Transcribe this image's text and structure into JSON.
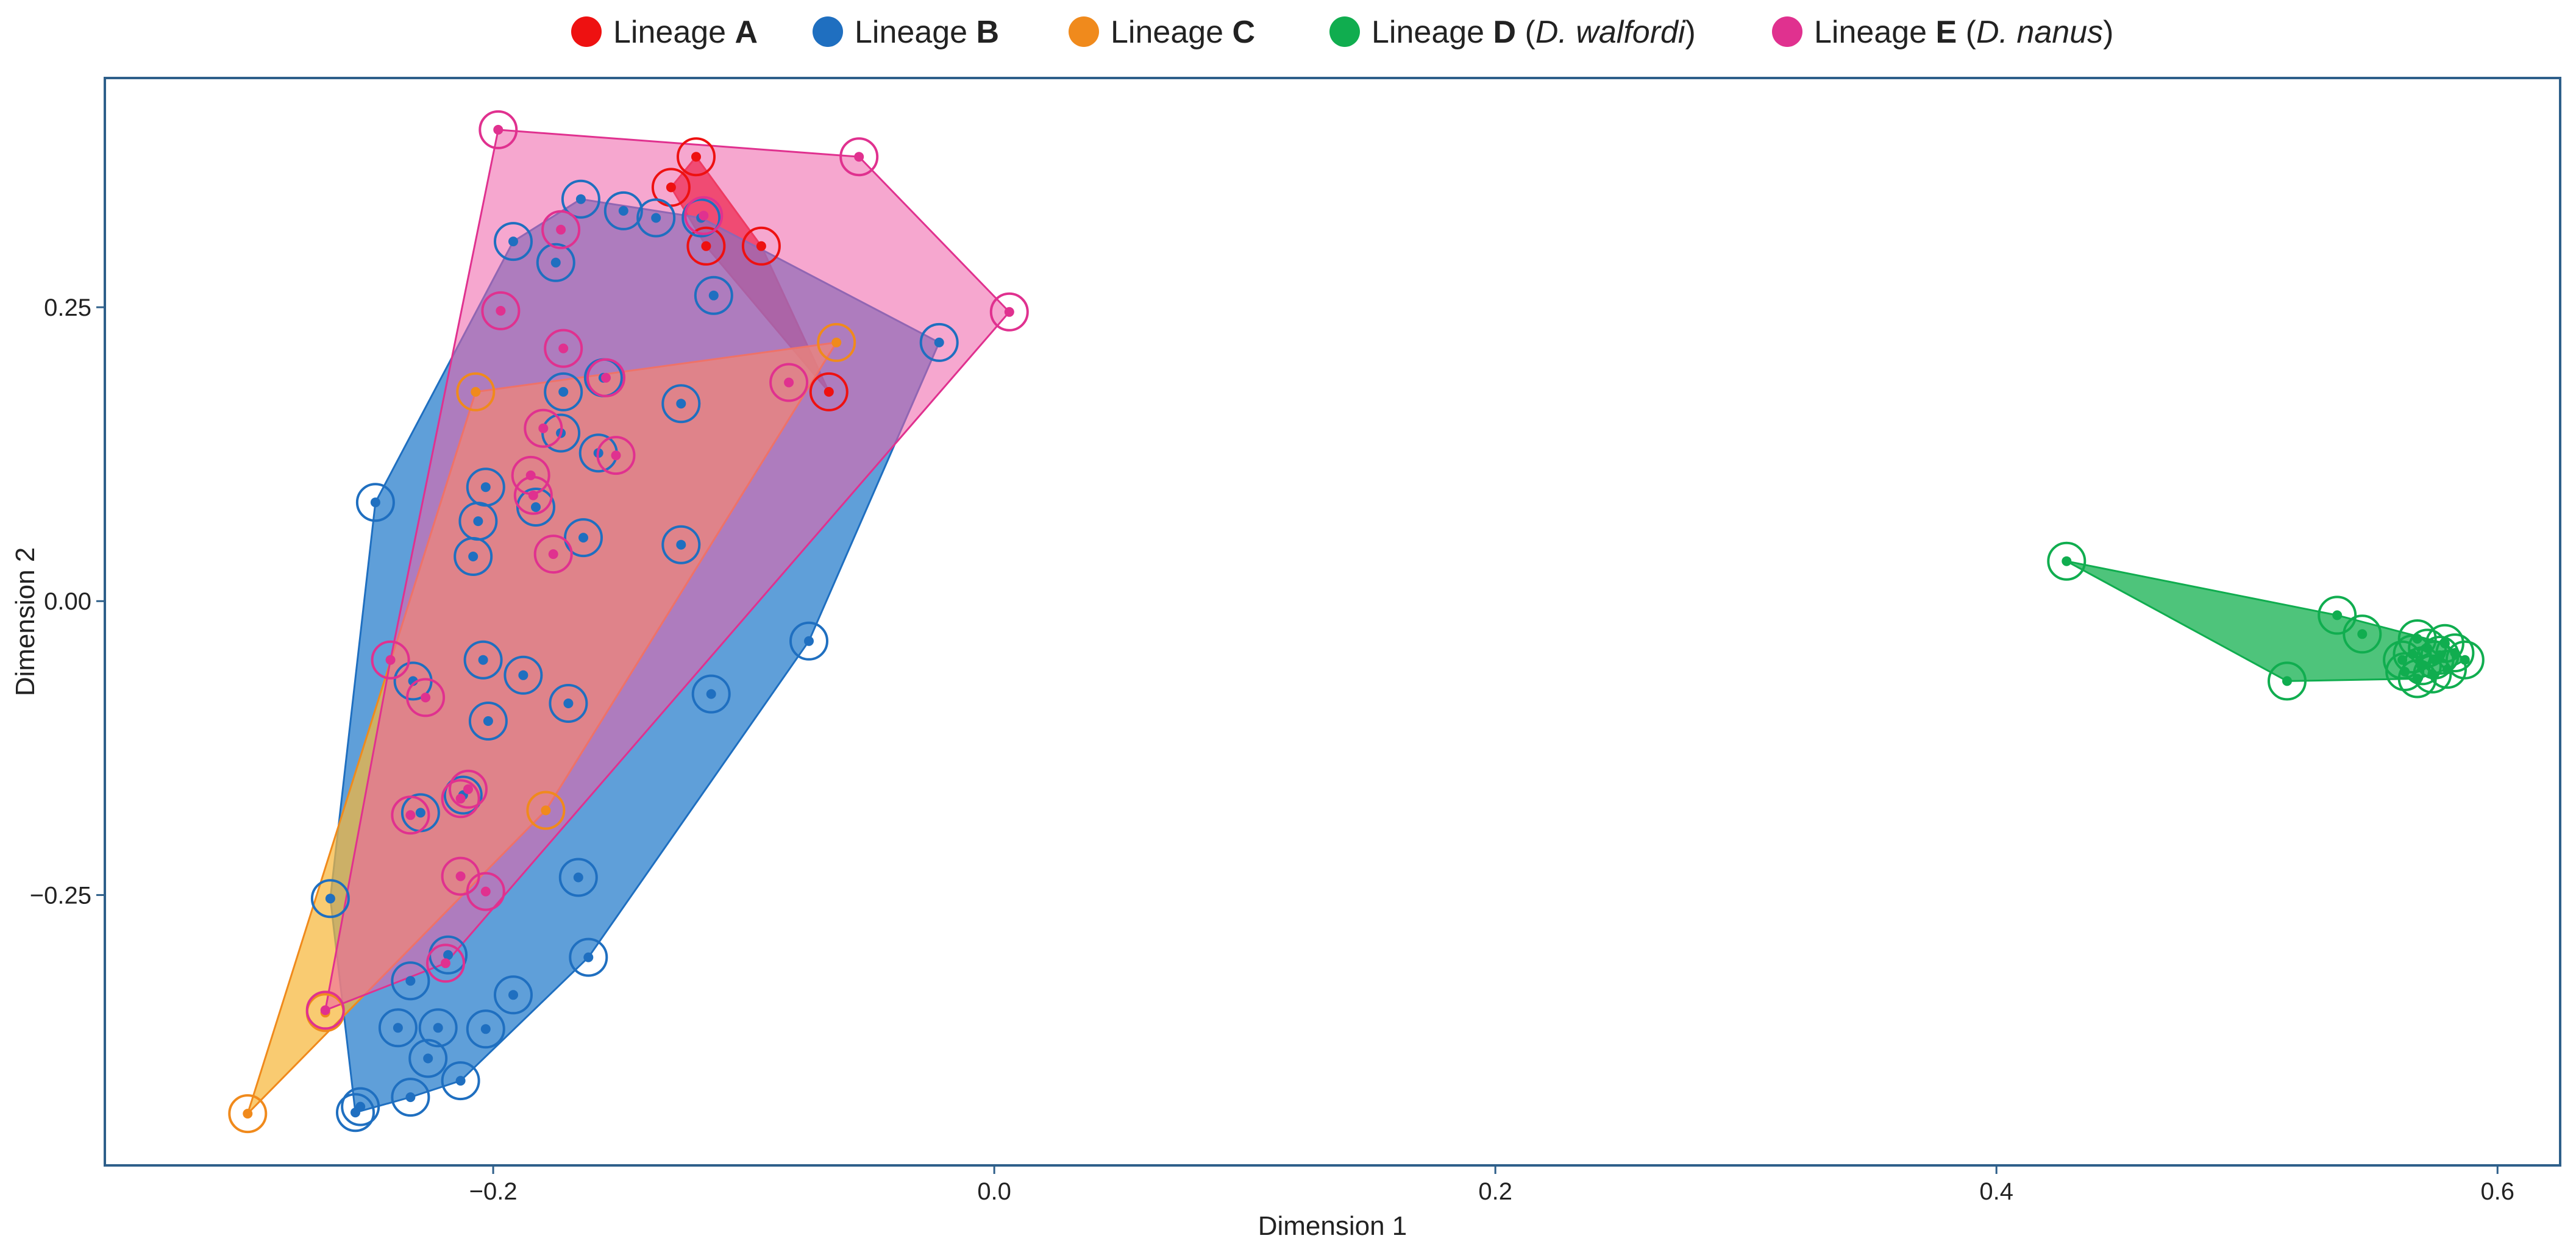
{
  "chart_data": {
    "type": "scatter",
    "title": "",
    "xlabel": "Dimension 1",
    "ylabel": "Dimension 2",
    "xlim": [
      -0.355,
      0.625
    ],
    "ylim": [
      -0.48,
      0.445
    ],
    "xticks": [
      -0.2,
      0.0,
      0.2,
      0.4,
      0.6
    ],
    "xtick_labels": [
      "−0.2",
      "0.0",
      "0.2",
      "0.4",
      "0.6"
    ],
    "yticks": [
      0.25,
      0.0,
      -0.25
    ],
    "ytick_labels": [
      "0.25",
      "0.00",
      "−0.25"
    ],
    "grid": false,
    "legend_position": "top-center",
    "series": [
      {
        "name": "Lineage A",
        "legend_prefix": "Lineage ",
        "legend_bold": "A",
        "legend_italic": "",
        "color": "#ee1111",
        "fill": "#ee1111",
        "hull_opacity": 0.85,
        "points": [
          [
            -0.119,
            0.378
          ],
          [
            -0.129,
            0.352
          ],
          [
            -0.115,
            0.302
          ],
          [
            -0.093,
            0.302
          ],
          [
            -0.066,
            0.178
          ]
        ]
      },
      {
        "name": "Lineage B",
        "legend_prefix": "Lineage ",
        "legend_bold": "B",
        "legend_italic": "",
        "color": "#1f6fc0",
        "fill": "#2a7fcc",
        "hull_opacity": 0.75,
        "points": [
          [
            -0.165,
            0.342
          ],
          [
            -0.148,
            0.332
          ],
          [
            -0.135,
            0.326
          ],
          [
            -0.117,
            0.326
          ],
          [
            -0.192,
            0.306
          ],
          [
            -0.175,
            0.288
          ],
          [
            -0.112,
            0.26
          ],
          [
            -0.022,
            0.22
          ],
          [
            -0.172,
            0.178
          ],
          [
            -0.156,
            0.19
          ],
          [
            -0.125,
            0.168
          ],
          [
            -0.173,
            0.143
          ],
          [
            -0.158,
            0.126
          ],
          [
            -0.247,
            0.084
          ],
          [
            -0.203,
            0.097
          ],
          [
            -0.206,
            0.068
          ],
          [
            -0.183,
            0.08
          ],
          [
            -0.164,
            0.054
          ],
          [
            -0.125,
            0.048
          ],
          [
            -0.208,
            0.038
          ],
          [
            -0.074,
            -0.034
          ],
          [
            -0.232,
            -0.068
          ],
          [
            -0.204,
            -0.05
          ],
          [
            -0.188,
            -0.063
          ],
          [
            -0.17,
            -0.087
          ],
          [
            -0.113,
            -0.079
          ],
          [
            -0.202,
            -0.102
          ],
          [
            -0.229,
            -0.18
          ],
          [
            -0.212,
            -0.165
          ],
          [
            -0.265,
            -0.253
          ],
          [
            -0.166,
            -0.235
          ],
          [
            -0.162,
            -0.303
          ],
          [
            -0.218,
            -0.301
          ],
          [
            -0.192,
            -0.335
          ],
          [
            -0.233,
            -0.323
          ],
          [
            -0.238,
            -0.363
          ],
          [
            -0.222,
            -0.363
          ],
          [
            -0.203,
            -0.364
          ],
          [
            -0.226,
            -0.389
          ],
          [
            -0.213,
            -0.408
          ],
          [
            -0.233,
            -0.422
          ],
          [
            -0.253,
            -0.43
          ],
          [
            -0.255,
            -0.435
          ]
        ]
      },
      {
        "name": "Lineage C",
        "legend_prefix": "Lineage ",
        "legend_bold": "C",
        "legend_italic": "",
        "color": "#f08a1c",
        "fill": "#f6b73a",
        "hull_opacity": 0.72,
        "points": [
          [
            -0.063,
            0.22
          ],
          [
            -0.207,
            0.178
          ],
          [
            -0.179,
            -0.178
          ],
          [
            -0.267,
            -0.35
          ],
          [
            -0.298,
            -0.436
          ]
        ]
      },
      {
        "name": "Lineage D (D. walfordi)",
        "legend_prefix": "Lineage ",
        "legend_bold": "D",
        "legend_italic": "D. walfordi",
        "color": "#10ad4f",
        "fill": "#22b55a",
        "hull_opacity": 0.8,
        "points": [
          [
            0.428,
            0.034
          ],
          [
            0.536,
            -0.012
          ],
          [
            0.546,
            -0.028
          ],
          [
            0.516,
            -0.068
          ],
          [
            0.563,
            -0.06
          ],
          [
            0.568,
            -0.032
          ],
          [
            0.572,
            -0.04
          ],
          [
            0.575,
            -0.05
          ],
          [
            0.579,
            -0.036
          ],
          [
            0.583,
            -0.044
          ],
          [
            0.587,
            -0.05
          ],
          [
            0.566,
            -0.045
          ],
          [
            0.57,
            -0.055
          ],
          [
            0.574,
            -0.062
          ],
          [
            0.58,
            -0.058
          ],
          [
            0.568,
            -0.066
          ],
          [
            0.562,
            -0.05
          ],
          [
            0.577,
            -0.046
          ]
        ]
      },
      {
        "name": "Lineage E (D. nanus)",
        "legend_prefix": "Lineage ",
        "legend_bold": "E",
        "legend_italic": "D. nanus",
        "color": "#e0318f",
        "fill": "#ee5fa8",
        "hull_opacity": 0.55,
        "points": [
          [
            -0.198,
            0.401
          ],
          [
            -0.054,
            0.378
          ],
          [
            0.006,
            0.246
          ],
          [
            -0.173,
            0.316
          ],
          [
            -0.116,
            0.328
          ],
          [
            -0.197,
            0.247
          ],
          [
            -0.172,
            0.215
          ],
          [
            -0.082,
            0.186
          ],
          [
            -0.155,
            0.19
          ],
          [
            -0.18,
            0.147
          ],
          [
            -0.151,
            0.124
          ],
          [
            -0.185,
            0.107
          ],
          [
            -0.184,
            0.09
          ],
          [
            -0.176,
            0.04
          ],
          [
            -0.241,
            -0.05
          ],
          [
            -0.227,
            -0.082
          ],
          [
            -0.21,
            -0.16
          ],
          [
            -0.213,
            -0.168
          ],
          [
            -0.233,
            -0.182
          ],
          [
            -0.213,
            -0.234
          ],
          [
            -0.203,
            -0.247
          ],
          [
            -0.219,
            -0.308
          ],
          [
            -0.267,
            -0.348
          ]
        ]
      }
    ]
  }
}
